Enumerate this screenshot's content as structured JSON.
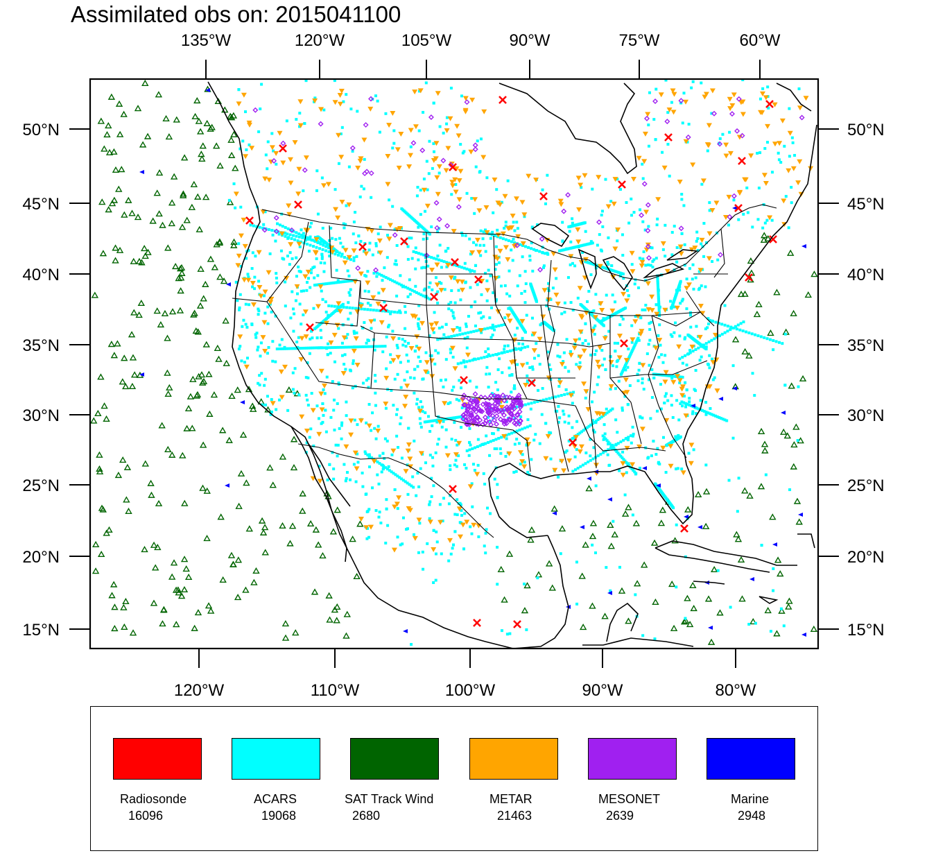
{
  "title": "Assimilated obs on: 2015041100",
  "axes": {
    "top_lon": [
      "135°W",
      "120°W",
      "105°W",
      "90°W",
      "75°W",
      "60°W"
    ],
    "bottom_lon": [
      "120°W",
      "110°W",
      "100°W",
      "90°W",
      "80°W"
    ],
    "lat": [
      "50°N",
      "45°N",
      "40°N",
      "35°N",
      "30°N",
      "25°N",
      "20°N",
      "15°N"
    ]
  },
  "legend": [
    {
      "name": "Radiosonde",
      "count": "16096",
      "color": "#ff0000",
      "icon": "x-marker-icon"
    },
    {
      "name": "ACARS",
      "count": "19068",
      "color": "#00ffff",
      "icon": "square-marker-icon"
    },
    {
      "name": "SAT Track Wind",
      "count": "2680",
      "color": "#006400",
      "icon": "triangle-up-marker-icon"
    },
    {
      "name": "METAR",
      "count": "21463",
      "color": "#ffa500",
      "icon": "triangle-down-marker-icon"
    },
    {
      "name": "MESONET",
      "count": "2639",
      "color": "#a020f0",
      "icon": "diamond-marker-icon"
    },
    {
      "name": "Marine",
      "count": "2948",
      "color": "#0000ff",
      "icon": "triangle-left-marker-icon"
    }
  ]
}
